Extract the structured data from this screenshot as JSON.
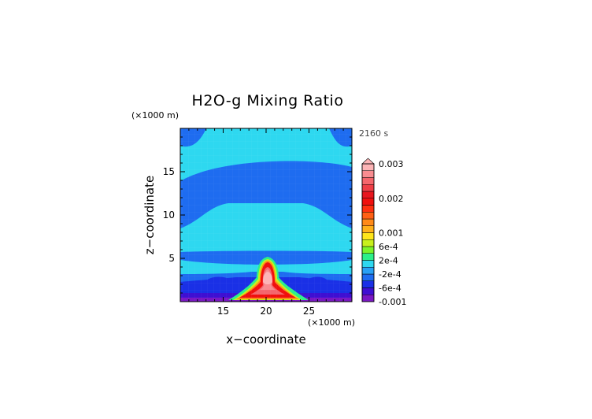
{
  "chart_data": {
    "type": "heatmap",
    "title": "H2O-g Mixing Ratio",
    "time_label": "2160 s",
    "xlabel": "x−coordinate",
    "ylabel": "z−coordinate",
    "x_unit": "(×1000 m)",
    "y_unit": "(×1000 m)",
    "xlim": [
      10,
      30
    ],
    "ylim": [
      0,
      20
    ],
    "x_ticks": [
      15,
      20,
      25
    ],
    "y_ticks": [
      5,
      10,
      15
    ],
    "grid": false,
    "legend": "colorbar-right",
    "colorbar": {
      "levels": [
        -0.001,
        -0.0008,
        -0.0006,
        -0.0004,
        -0.0002,
        0,
        0.0002,
        0.0004,
        0.0006,
        0.0008,
        0.001,
        0.0012,
        0.0014,
        0.0016,
        0.0018,
        0.002,
        0.0022,
        0.0024,
        0.0026,
        0.0028,
        0.003
      ],
      "tick_labels": [
        "0.003",
        "0.002",
        "0.001",
        "6e-4",
        "2e-4",
        "-2e-4",
        "-6e-4",
        "-0.001"
      ],
      "tick_values": [
        0.003,
        0.002,
        0.001,
        0.0006,
        0.0002,
        -0.0002,
        -0.0006,
        -0.001
      ],
      "colors": [
        "#7a17c4",
        "#3f0fd2",
        "#1a30e6",
        "#1e6cf0",
        "#28a0f5",
        "#2ed8f0",
        "#2cf08a",
        "#7cf42a",
        "#c8f01c",
        "#ffe61a",
        "#ffb01a",
        "#ff8a18",
        "#ff6014",
        "#ff3010",
        "#f0100e",
        "#e8161e",
        "#ee3e46",
        "#f4666c",
        "#f88c90",
        "#fcb4b6"
      ]
    },
    "regions": {
      "background_upper": -0.0003,
      "upper_band": -0.0001,
      "mid_band": -0.0003,
      "lower_band": -0.0001,
      "surface_layer": -0.0009,
      "plume_core": 0.0028
    }
  }
}
